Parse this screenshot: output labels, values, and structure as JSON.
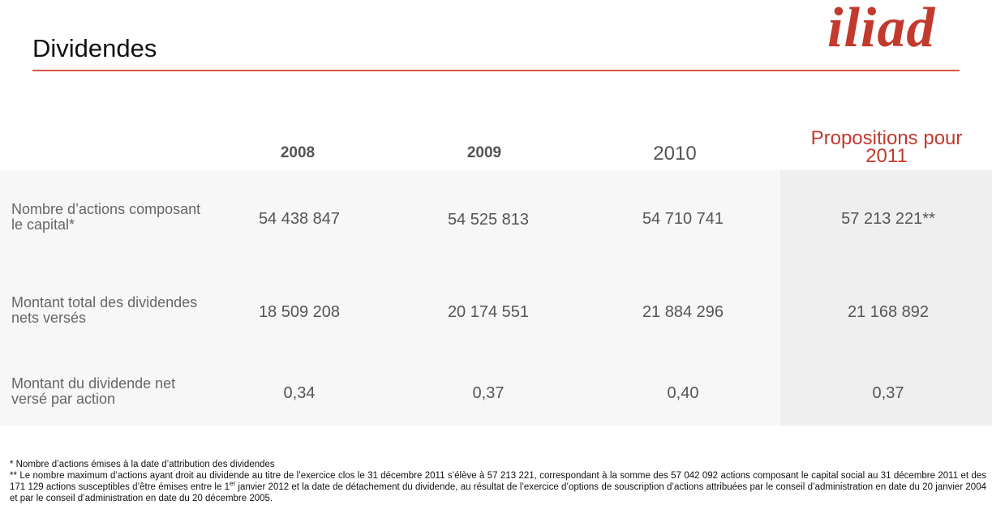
{
  "header": {
    "title": "Dividendes",
    "logo": "iliad"
  },
  "table": {
    "columns": [
      "2008",
      "2009",
      "2010",
      "Propositions pour 2011"
    ],
    "rows": [
      {
        "label": "Nombre d’actions composant le capital*",
        "values": [
          "54 438 847",
          "54 525 813",
          "54 710 741",
          "57 213 221**"
        ]
      },
      {
        "label": "Montant total des dividendes nets versés",
        "values": [
          "18 509 208",
          "20 174 551",
          "21 884 296",
          "21 168 892"
        ]
      },
      {
        "label": "Montant du dividende net versé par action",
        "values": [
          "0,34",
          "0,37",
          "0,40",
          "0,37"
        ]
      }
    ]
  },
  "footnotes": {
    "note1": "* Nombre d’actions émises à la date d’attribution des dividendes",
    "note2_part1": "** Le nombre maximum d’actions ayant droit au dividende au titre de l’exercice clos le 31 décembre 2011 s’élève à  57 213 221, correspondant à la somme des 57 042 092 actions composant le capital social au 31 décembre 2011 et des 171 129 actions susceptibles d’être émises entre le 1",
    "note2_sup": "er",
    "note2_part2": " janvier 2012 et la date de détachement du dividende, au résultat de l’exercice d’options de souscription d’actions attribuées par le conseil d’administration en date du 20 janvier 2004 et par le conseil d’administration en date du 20 décembre 2005."
  },
  "colors": {
    "accent": "#c23a2e",
    "rule": "#d9533f"
  }
}
